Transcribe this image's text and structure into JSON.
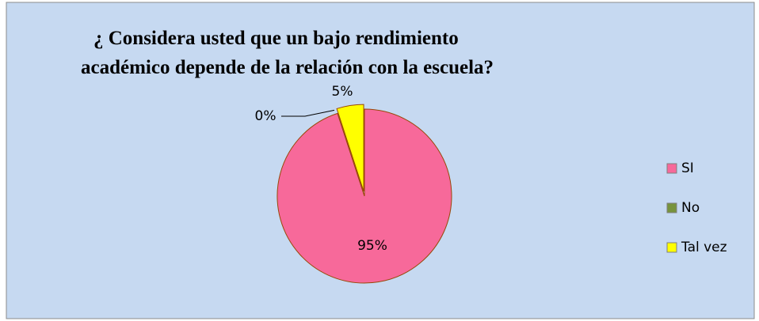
{
  "chart_data": {
    "type": "pie",
    "title": [
      "¿ Considera usted que un bajo rendimiento",
      "académico depende de la relación con la escuela?"
    ],
    "categories": [
      "SI",
      "No",
      "Tal vez"
    ],
    "values": [
      95,
      0,
      5
    ],
    "value_labels": [
      "95%",
      "0%",
      "5%"
    ],
    "colors": [
      "#f7699a",
      "#77933c",
      "#ffff00"
    ],
    "legend": "right"
  }
}
